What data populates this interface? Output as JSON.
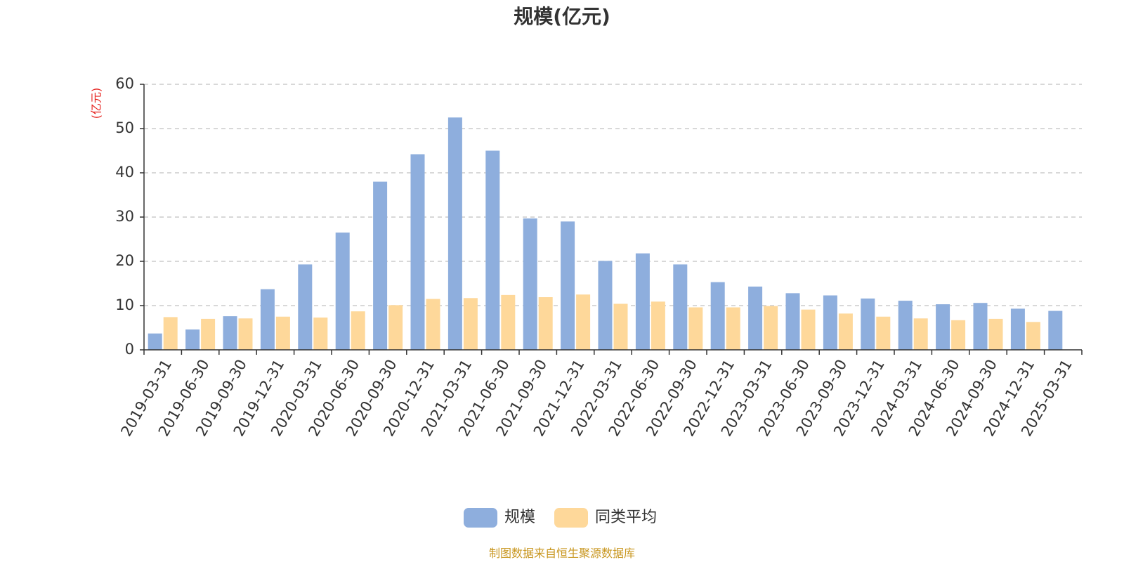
{
  "chart_data": {
    "type": "bar",
    "title": "规模(亿元)",
    "ylabel": "(亿元)",
    "ylim": [
      0,
      60
    ],
    "yticks": [
      0,
      10,
      20,
      30,
      40,
      50,
      60
    ],
    "grid": true,
    "legend_position": "bottom-center",
    "categories": [
      "2019-03-31",
      "2019-06-30",
      "2019-09-30",
      "2019-12-31",
      "2020-03-31",
      "2020-06-30",
      "2020-09-30",
      "2020-12-31",
      "2021-03-31",
      "2021-06-30",
      "2021-09-30",
      "2021-12-31",
      "2022-03-31",
      "2022-06-30",
      "2022-09-30",
      "2022-12-31",
      "2023-03-31",
      "2023-06-30",
      "2023-09-30",
      "2023-12-31",
      "2024-03-31",
      "2024-06-30",
      "2024-09-30",
      "2024-12-31",
      "2025-03-31"
    ],
    "series": [
      {
        "name": "规模",
        "color": "#8eaedd",
        "values": [
          3.7,
          4.6,
          7.6,
          13.7,
          19.3,
          26.5,
          38.0,
          44.2,
          52.5,
          45.0,
          29.7,
          29.0,
          20.1,
          21.8,
          19.3,
          15.3,
          14.3,
          12.8,
          12.3,
          11.6,
          11.1,
          10.3,
          10.6,
          9.3,
          8.8
        ]
      },
      {
        "name": "同类平均",
        "color": "#fed89a",
        "values": [
          7.4,
          7.0,
          7.1,
          7.5,
          7.3,
          8.7,
          10.1,
          11.5,
          11.7,
          12.4,
          11.9,
          12.5,
          10.4,
          10.9,
          9.6,
          9.6,
          9.9,
          9.1,
          8.2,
          7.5,
          7.1,
          6.7,
          7.0,
          6.3,
          null
        ]
      }
    ]
  },
  "footer": {
    "source": "制图数据来自恒生聚源数据库"
  }
}
